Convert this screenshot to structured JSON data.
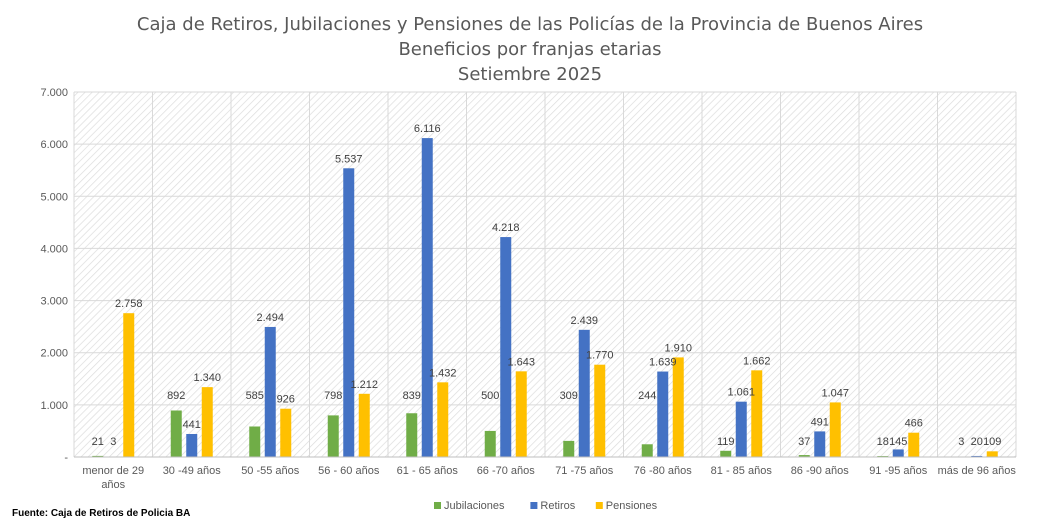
{
  "title_lines": [
    "Caja de Retiros, Jubilaciones y Pensiones de las Policías de la Provincia de Buenos Aires",
    "Beneficios por franjas etarias",
    "Setiembre 2025"
  ],
  "source": "Fuente: Caja de Retiros de Policia BA",
  "chart_data": {
    "type": "bar",
    "title": "Caja de Retiros, Jubilaciones y Pensiones de las Policías de la Provincia de Buenos Aires",
    "subtitle": "Beneficios por franjas etarias — Setiembre 2025",
    "xlabel": "",
    "ylabel": "",
    "ylim": [
      0,
      7000
    ],
    "yticks": [
      "-",
      "1.000",
      "2.000",
      "3.000",
      "4.000",
      "5.000",
      "6.000",
      "7.000"
    ],
    "grid": true,
    "legend_position": "bottom",
    "categories": [
      [
        "menor de 29",
        "años"
      ],
      [
        "30 -49 años"
      ],
      [
        "50 -55 años"
      ],
      [
        "56 - 60 años"
      ],
      [
        "61 - 65 años"
      ],
      [
        "66 -70 años"
      ],
      [
        "71 -75 años"
      ],
      [
        "76 -80 años"
      ],
      [
        "81 - 85 años"
      ],
      [
        "86 -90 años"
      ],
      [
        "91 -95 años"
      ],
      [
        "más de 96 años"
      ]
    ],
    "series": [
      {
        "name": "Jubilaciones",
        "color": "#70AD47",
        "values": [
          21,
          892,
          585,
          798,
          839,
          500,
          309,
          244,
          119,
          37,
          18,
          3
        ],
        "labels": [
          "21",
          "892",
          "585",
          "798",
          "839",
          "500",
          "309",
          "244",
          "119",
          "37",
          "18",
          "3"
        ]
      },
      {
        "name": "Retiros",
        "color": "#4472C4",
        "values": [
          3,
          441,
          2494,
          5537,
          6116,
          4218,
          2439,
          1639,
          1061,
          491,
          145,
          20
        ],
        "labels": [
          "3",
          "441",
          "2.494",
          "5.537",
          "6.116",
          "4.218",
          "2.439",
          "1.639",
          "1.061",
          "491",
          "145",
          "20"
        ]
      },
      {
        "name": "Pensiones",
        "color": "#FFC000",
        "values": [
          2758,
          1340,
          926,
          1212,
          1432,
          1643,
          1770,
          1910,
          1662,
          1047,
          466,
          109
        ],
        "labels": [
          "2.758",
          "1.340",
          "926",
          "1.212",
          "1.432",
          "1.643",
          "1.770",
          "1.910",
          "1.662",
          "1.047",
          "466",
          "109"
        ]
      }
    ]
  }
}
